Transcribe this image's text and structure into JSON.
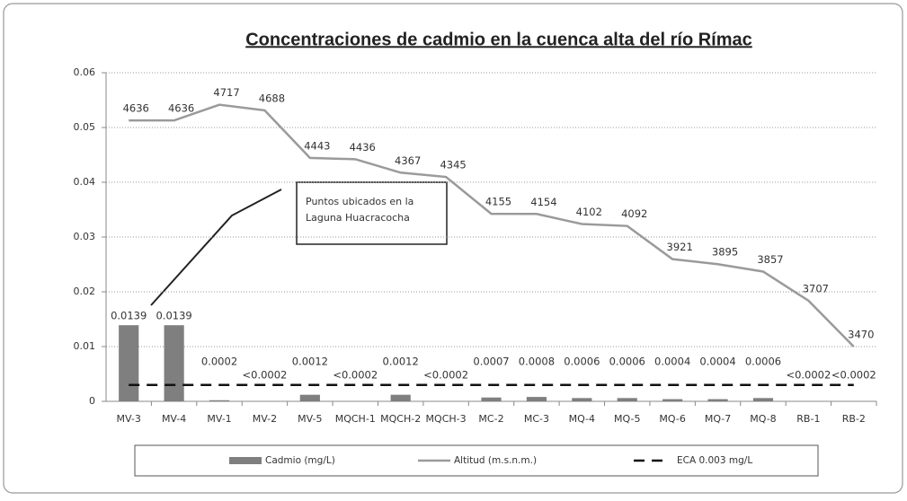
{
  "chart_data": {
    "type": "bar-line",
    "title": "Concentraciones de cadmio  en la cuenca alta del río Rímac",
    "categories": [
      "MV-3",
      "MV-4",
      "MV-1",
      "MV-2",
      "MV-5",
      "MQCH-1",
      "MQCH-2",
      "MQCH-3",
      "MC-2",
      "MC-3",
      "MQ-4",
      "MQ-5",
      "MQ-6",
      "MQ-7",
      "MQ-8",
      "RB-1",
      "RB-2"
    ],
    "series": [
      {
        "name": "Cadmio (mg/L)",
        "type": "bar",
        "color": "#7f7f7f",
        "values": [
          0.0139,
          0.0139,
          0.0002,
          null,
          0.0012,
          null,
          0.0012,
          null,
          0.0007,
          0.0008,
          0.0006,
          0.0006,
          0.0004,
          0.0004,
          0.0006,
          null,
          null
        ],
        "value_labels": [
          "0.0139",
          "0.0139",
          "0.0002",
          "<0.0002",
          "0.0012",
          "<0.0002",
          "0.0012",
          "<0.0002",
          "0.0007",
          "0.0008",
          "0.0006",
          "0.0006",
          "0.0004",
          "0.0004",
          "0.0006",
          "<0.0002",
          "<0.0002"
        ]
      },
      {
        "name": "Altitud (m.s.n.m.)",
        "type": "line",
        "axis": "y2",
        "color": "#9a9a9a",
        "values": [
          4636,
          4636,
          4717,
          4688,
          4443,
          4436,
          4367,
          4345,
          4155,
          4154,
          4102,
          4092,
          3921,
          3895,
          3857,
          3707,
          3470
        ]
      },
      {
        "name": "ECA 0.003 mg/L",
        "type": "dashed",
        "color": "#111111",
        "values": [
          0.003,
          0.003,
          0.003,
          0.003,
          0.003,
          0.003,
          0.003,
          0.003,
          0.003,
          0.003,
          0.003,
          0.003,
          0.003,
          0.003,
          0.003,
          0.003,
          0.003
        ]
      }
    ],
    "ylim": [
      0,
      0.06
    ],
    "yticks": [
      0,
      0.01,
      0.02,
      0.03,
      0.04,
      0.05,
      0.06
    ],
    "y2lim": [
      3188,
      4882
    ],
    "grid": true,
    "annotation": [
      "Puntos ubicados en la",
      "Laguna Huacracocha"
    ]
  }
}
